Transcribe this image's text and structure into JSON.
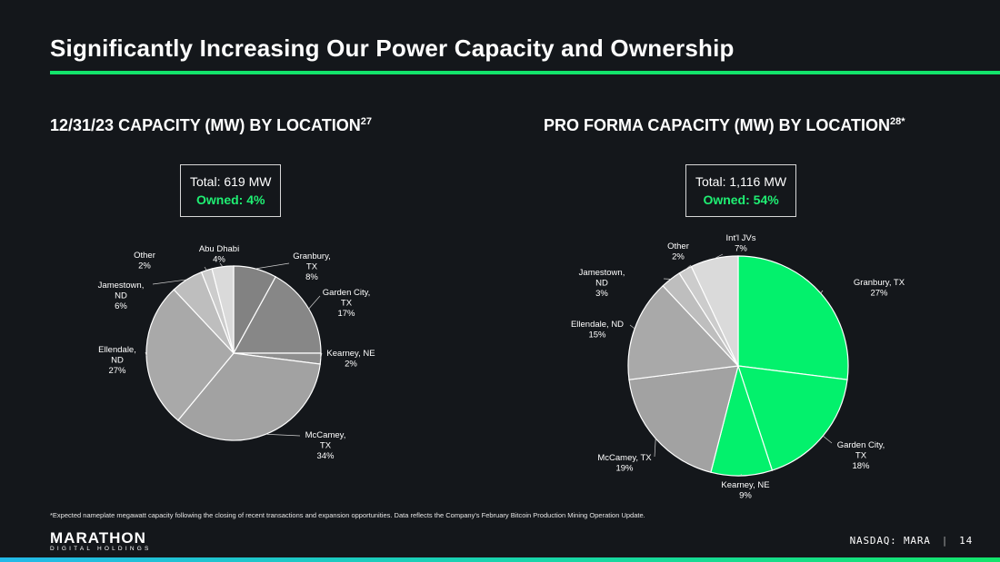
{
  "slide": {
    "title": "Significantly Increasing Our Power Capacity and Ownership",
    "footnote": "*Expected nameplate megawatt capacity following the closing of recent transactions and expansion opportunities. Data reflects the Company's February Bitcoin Production Mining Operation Update.",
    "ticker": "NASDAQ: MARA",
    "separator": "|",
    "page_number": "14",
    "logo_main": "MARATHON",
    "logo_sub": "DIGITAL HOLDINGS",
    "accent_color": "#13e46b"
  },
  "left": {
    "heading": "12/31/23 CAPACITY (MW) BY LOCATION",
    "heading_sup": "27",
    "total": "Total: 619 MW",
    "owned": "Owned: 4%"
  },
  "right": {
    "heading": "PRO FORMA CAPACITY (MW) BY LOCATION",
    "heading_sup": "28*",
    "total": "Total: 1,116 MW",
    "owned": "Owned: 54%"
  },
  "chart_data": [
    {
      "type": "pie",
      "title": "12/31/23 CAPACITY (MW) BY LOCATION",
      "slices": [
        {
          "label": [
            "Granbury,",
            "TX"
          ],
          "value": 8,
          "pct": "8%",
          "color": "#828282"
        },
        {
          "label": [
            "Garden City,",
            "TX"
          ],
          "value": 17,
          "pct": "17%",
          "color": "#878787"
        },
        {
          "label": [
            "Kearney, NE"
          ],
          "value": 2,
          "pct": "2%",
          "color": "#8e8e8e"
        },
        {
          "label": [
            "McCamey,",
            "TX"
          ],
          "value": 34,
          "pct": "34%",
          "color": "#a2a2a2"
        },
        {
          "label": [
            "Ellendale,",
            "ND"
          ],
          "value": 27,
          "pct": "27%",
          "color": "#a9a9a9"
        },
        {
          "label": [
            "Jamestown,",
            "ND"
          ],
          "value": 6,
          "pct": "6%",
          "color": "#bebebe"
        },
        {
          "label": [
            "Other"
          ],
          "value": 2,
          "pct": "2%",
          "color": "#cccccc"
        },
        {
          "label": [
            "Abu Dhabi"
          ],
          "value": 4,
          "pct": "4%",
          "color": "#dadada"
        }
      ]
    },
    {
      "type": "pie",
      "title": "PRO FORMA CAPACITY (MW) BY LOCATION",
      "slices": [
        {
          "label": [
            "Granbury, TX"
          ],
          "value": 27,
          "pct": "27%",
          "color": "#03f16c"
        },
        {
          "label": [
            "Garden City,",
            "TX"
          ],
          "value": 18,
          "pct": "18%",
          "color": "#03f16c"
        },
        {
          "label": [
            "Kearney, NE"
          ],
          "value": 9,
          "pct": "9%",
          "color": "#03f16c"
        },
        {
          "label": [
            "McCamey, TX"
          ],
          "value": 19,
          "pct": "19%",
          "color": "#a2a2a2"
        },
        {
          "label": [
            "Ellendale, ND"
          ],
          "value": 15,
          "pct": "15%",
          "color": "#a9a9a9"
        },
        {
          "label": [
            "Jamestown,",
            "ND"
          ],
          "value": 3,
          "pct": "3%",
          "color": "#bebebe"
        },
        {
          "label": [
            "Other"
          ],
          "value": 2,
          "pct": "2%",
          "color": "#cccccc"
        },
        {
          "label": [
            "Int'l JVs"
          ],
          "value": 7,
          "pct": "7%",
          "color": "#dadada"
        }
      ]
    }
  ]
}
